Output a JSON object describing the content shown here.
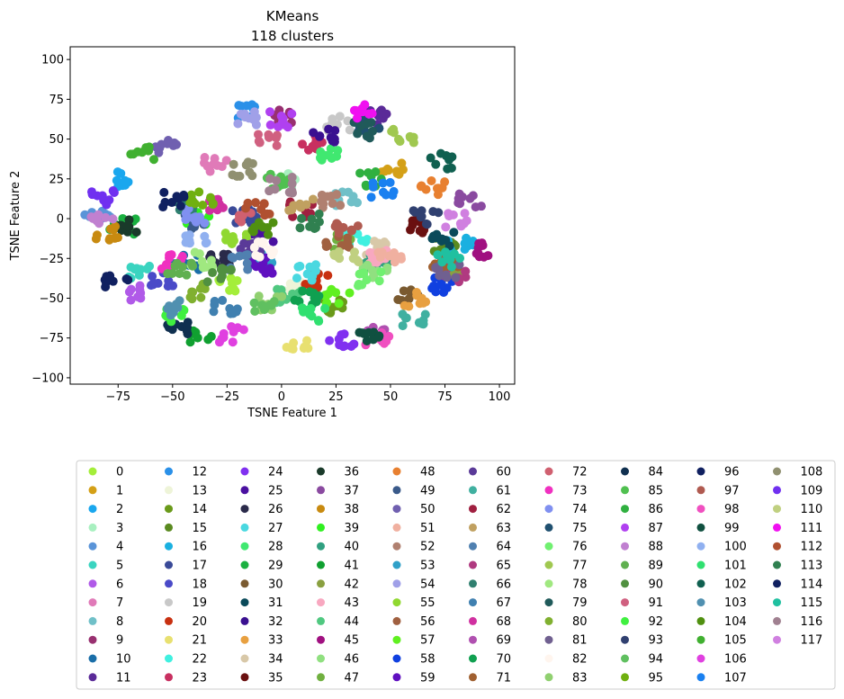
{
  "chart_data": {
    "type": "scatter",
    "title": "KMeans",
    "subtitle": "118 clusters",
    "xlabel": "TSNE Feature 1",
    "ylabel": "TSNE Feature 2",
    "xlim": [
      -97,
      107
    ],
    "ylim": [
      -104,
      108
    ],
    "xticks": [
      -75,
      -50,
      -25,
      0,
      25,
      50,
      75,
      100
    ],
    "yticks": [
      -100,
      -75,
      -50,
      -25,
      0,
      25,
      50,
      75,
      100
    ],
    "grid": false,
    "legend_position": "bottom-center",
    "legend_columns": 10,
    "n_clusters": 118,
    "legend_labels": [
      "0",
      "1",
      "2",
      "3",
      "4",
      "5",
      "6",
      "7",
      "8",
      "9",
      "10",
      "11",
      "12",
      "13",
      "14",
      "15",
      "16",
      "17",
      "18",
      "19",
      "20",
      "21",
      "22",
      "23",
      "24",
      "25",
      "26",
      "27",
      "28",
      "29",
      "30",
      "31",
      "32",
      "33",
      "34",
      "35",
      "36",
      "37",
      "38",
      "39",
      "40",
      "41",
      "42",
      "43",
      "44",
      "45",
      "46",
      "47",
      "48",
      "49",
      "50",
      "51",
      "52",
      "53",
      "54",
      "55",
      "56",
      "57",
      "58",
      "59",
      "60",
      "61",
      "62",
      "63",
      "64",
      "65",
      "66",
      "67",
      "68",
      "69",
      "70",
      "71",
      "72",
      "73",
      "74",
      "75",
      "76",
      "77",
      "78",
      "79",
      "80",
      "81",
      "82",
      "83",
      "84",
      "85",
      "86",
      "87",
      "88",
      "89",
      "90",
      "91",
      "92",
      "93",
      "94",
      "95",
      "96",
      "97",
      "98",
      "99",
      "100",
      "101",
      "102",
      "103",
      "104",
      "105",
      "106",
      "107",
      "108",
      "109",
      "110",
      "111",
      "112",
      "113",
      "114",
      "115",
      "116",
      "117"
    ],
    "colors": [
      "#a4ee3a",
      "#d4a017",
      "#1aa7ee",
      "#a8f0c0",
      "#5a94d8",
      "#3ad4c0",
      "#b05ae8",
      "#e07ab8",
      "#70c0c8",
      "#983070",
      "#1a6ea8",
      "#5a2a98",
      "#2a90e8",
      "#eef4d8",
      "#6a9a1a",
      "#5a8a20",
      "#1ab0e0",
      "#3a4a98",
      "#4a4ac8",
      "#c8c8c8",
      "#c83010",
      "#e8e070",
      "#40f0e0",
      "#c83060",
      "#8030f0",
      "#4a10a0",
      "#2a2a4a",
      "#4ad8e0",
      "#40e870",
      "#1ab040",
      "#7a5a30",
      "#0a4a5a",
      "#3a1090",
      "#e8a040",
      "#d8c8a8",
      "#6a1010",
      "#1a3a2a",
      "#8a4aa0",
      "#c88a10",
      "#30f020",
      "#30a080",
      "#10a030",
      "#8aa040",
      "#f8a8c0",
      "#50c880",
      "#a01080",
      "#90e080",
      "#70b040",
      "#e88030",
      "#3a5a8a",
      "#7060b0",
      "#f0b0a0",
      "#b08070",
      "#30a0c8",
      "#a0a0e8",
      "#90d830",
      "#a06040",
      "#60f020",
      "#1040e0",
      "#6010c0",
      "#5a3a98",
      "#40b0a0",
      "#a02040",
      "#c0a060",
      "#5080b0",
      "#b03a80",
      "#308070",
      "#4080b0",
      "#d030a0",
      "#b050b0",
      "#10a050",
      "#a06030",
      "#d06070",
      "#f030c0",
      "#8090f0",
      "#205070",
      "#70f070",
      "#a0c850",
      "#a0e880",
      "#205a5a",
      "#80b030",
      "#706090",
      "#fff5ee",
      "#90d070",
      "#103050",
      "#50c050",
      "#30b040",
      "#b040f0",
      "#c080d0",
      "#60b050",
      "#509040",
      "#d06080",
      "#40f040",
      "#304070",
      "#60c060",
      "#70b010",
      "#102060",
      "#b05a50",
      "#f050c0",
      "#105040",
      "#90b0f0",
      "#30e070",
      "#106050",
      "#5090b0",
      "#509010",
      "#40b030",
      "#e040e0",
      "#1a80f0",
      "#909070",
      "#7030f0",
      "#c0d080",
      "#f010f0",
      "#b05030",
      "#308050",
      "#102060",
      "#20c0a0",
      "#a08090",
      "#d080e0"
    ],
    "points_per_cluster": 9
  }
}
